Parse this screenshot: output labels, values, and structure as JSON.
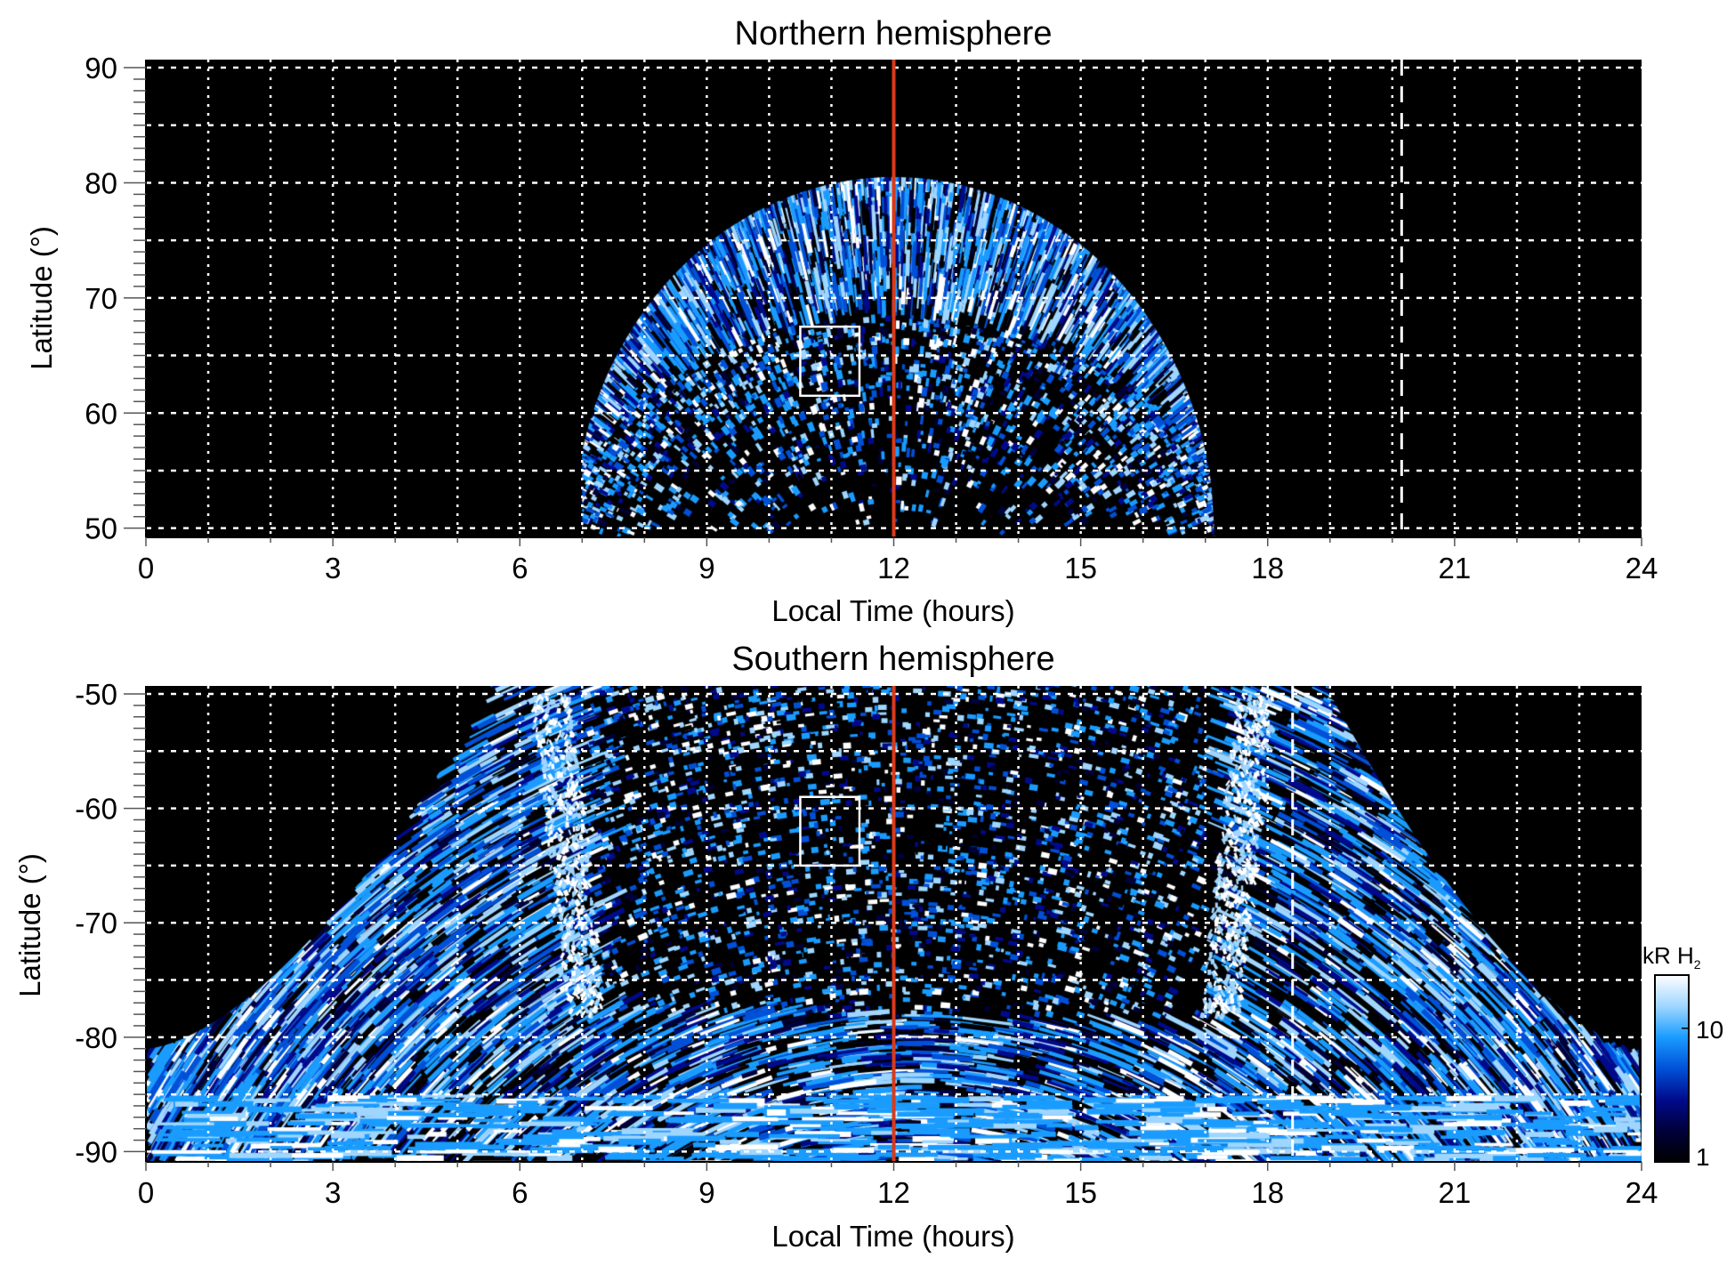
{
  "chart_data": [
    {
      "type": "heatmap",
      "title": "Northern hemisphere",
      "xlabel": "Local Time (hours)",
      "ylabel": "Latitude (°)",
      "xlim": [
        0,
        24
      ],
      "ylim": [
        49.2,
        90.7
      ],
      "xticks": [
        "0",
        "3",
        "6",
        "9",
        "12",
        "15",
        "18",
        "21",
        "24"
      ],
      "yticks": [
        "50",
        "60",
        "70",
        "80",
        "90"
      ],
      "ytick_values": [
        50,
        60,
        70,
        80,
        90
      ],
      "grid": true,
      "emission_region": {
        "lt_min": 7.0,
        "lt_max": 17.2,
        "lat_base": 49.2,
        "lat_peak": 80.5,
        "peak_lt": 12
      },
      "markers": {
        "red_line_lt": 12.0,
        "dashed_line_lt": 20.15,
        "box": {
          "lt": [
            10.5,
            11.45
          ],
          "lat": [
            61.5,
            67.5
          ]
        }
      }
    },
    {
      "type": "heatmap",
      "title": "Southern hemisphere",
      "xlabel": "Local Time (hours)",
      "ylabel": "Latitude (°)",
      "xlim": [
        0,
        24
      ],
      "ylim": [
        -90.9,
        -49.3
      ],
      "xticks": [
        "0",
        "3",
        "6",
        "9",
        "12",
        "15",
        "18",
        "21",
        "24"
      ],
      "yticks": [
        "-50",
        "-60",
        "-70",
        "-80",
        "-90"
      ],
      "ytick_values": [
        -50,
        -60,
        -70,
        -80,
        -90
      ],
      "grid": true,
      "emission_region": {
        "lt_min": 0.0,
        "lt_max": 24.0,
        "lat_edge_at_midnight": -81,
        "lat_top_lt": [
          5.5,
          19.0
        ],
        "bright_bands_lt": [
          6.5,
          17.8
        ]
      },
      "markers": {
        "red_line_lt": 12.0,
        "dashed_line_lt": 18.4,
        "box": {
          "lt": [
            10.5,
            11.45
          ],
          "lat": [
            -59,
            -65
          ]
        }
      }
    }
  ],
  "colorbar": {
    "label": "kR H",
    "label_subscript": "2",
    "scale": "log",
    "range": [
      1,
      25
    ],
    "ticks": [
      "1",
      "10"
    ],
    "tick_values": [
      1,
      10
    ],
    "colors": [
      "#000000",
      "#00003a",
      "#000a8c",
      "#0050d8",
      "#1a9cff",
      "#9fd6ff",
      "#ffffff"
    ]
  },
  "colors": {
    "red_line": "#d83a1a",
    "grid": "#ffffff",
    "background": "#000000"
  }
}
